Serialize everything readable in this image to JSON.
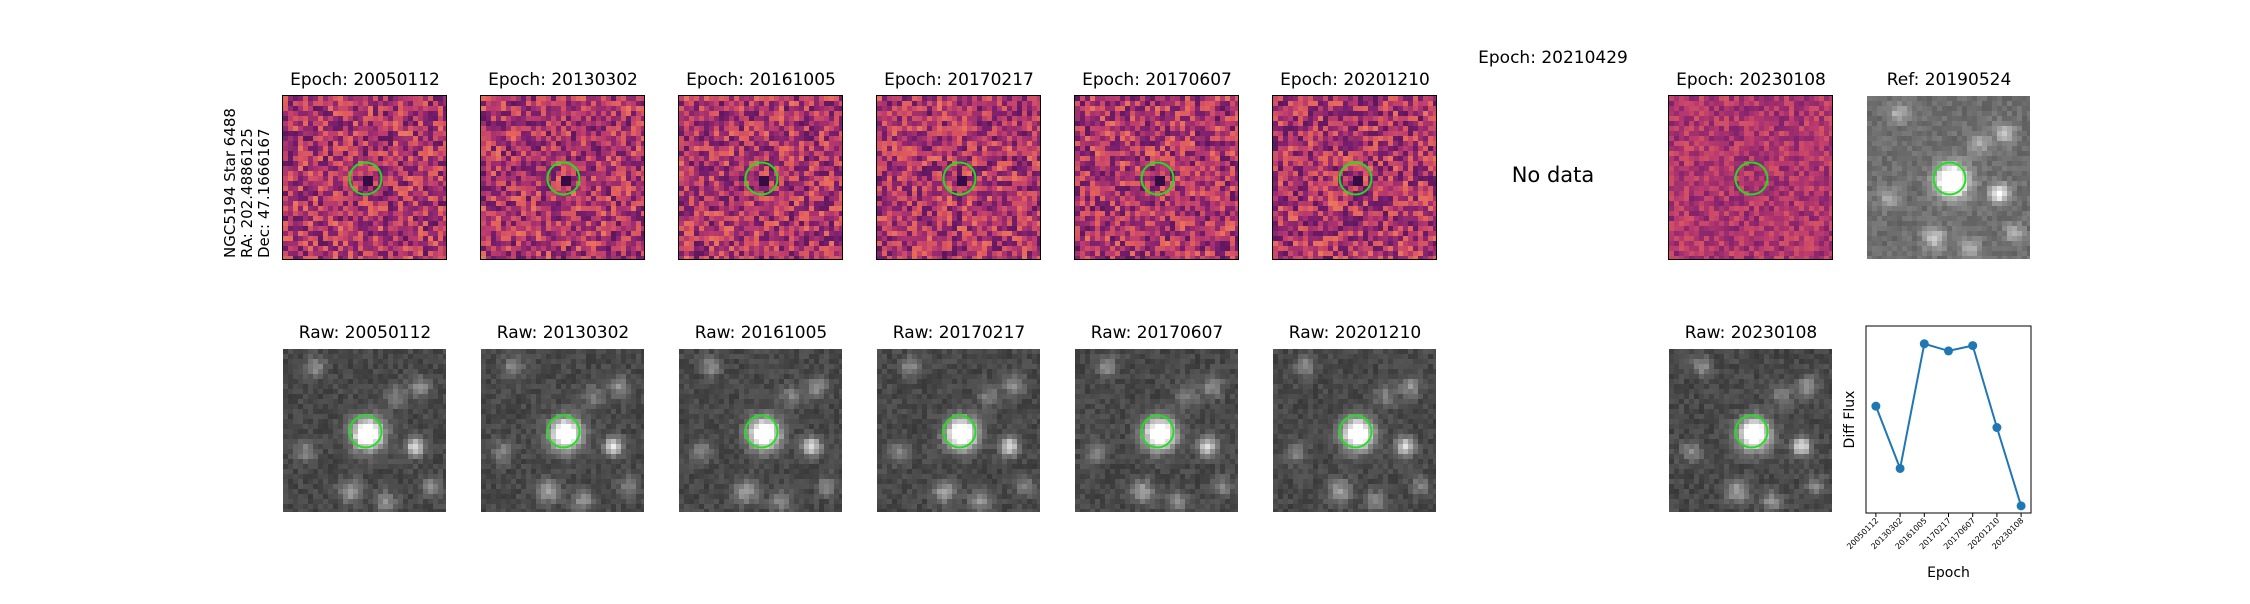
{
  "star_label": {
    "name": "NGC5194 Star 6488",
    "ra": "RA: 202.4886125",
    "dec": "Dec: 47.1666167"
  },
  "diff_titles": [
    "Epoch: 20050112",
    "Epoch: 20130302",
    "Epoch: 20161005",
    "Epoch: 20170217",
    "Epoch: 20170607",
    "Epoch: 20201210",
    "Epoch: 20210429",
    "Epoch: 20230108"
  ],
  "ref_title": "Ref: 20190524",
  "raw_titles": [
    "Raw: 20050112",
    "Raw: 20130302",
    "Raw: 20161005",
    "Raw: 20170217",
    "Raw: 20170607",
    "Raw: 20201210",
    "Raw: 20230108"
  ],
  "no_data_text": "No data",
  "colors": {
    "circle": "#22dd22",
    "diff_base": "#c8466e",
    "raw_base": "#4a4a4a",
    "series": "#1f77b4"
  },
  "chart_data": {
    "type": "line",
    "xlabel": "Epoch",
    "ylabel": "Diff Flux",
    "x": [
      "20050112",
      "20130302",
      "20161005",
      "20170217",
      "20170607",
      "20201210",
      "20230108"
    ],
    "y": [
      0.55,
      0.2,
      0.9,
      0.86,
      0.89,
      0.43,
      -0.01
    ],
    "ylim": [
      -0.05,
      1.0
    ],
    "grid": false,
    "show_y_ticks": false
  }
}
